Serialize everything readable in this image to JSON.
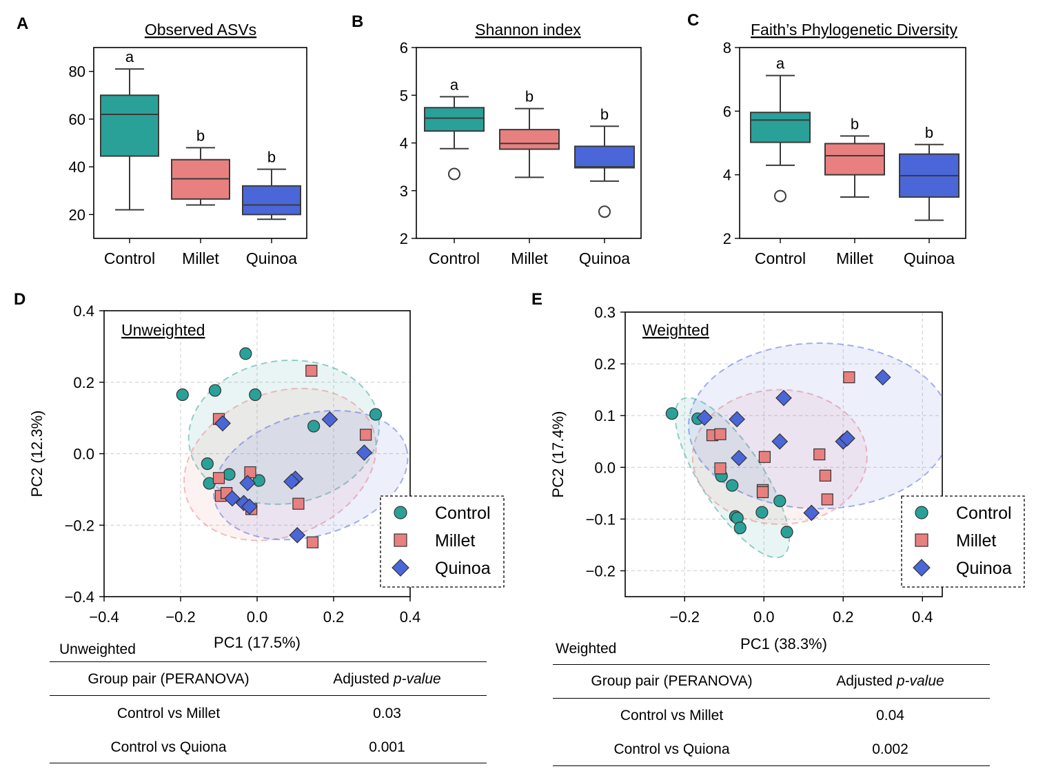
{
  "figure": {
    "colors": {
      "control": "#2aa198",
      "millet": "#e88080",
      "quinoa": "#4a66d8"
    },
    "panels": [
      "A",
      "B",
      "C",
      "D",
      "E"
    ]
  },
  "chart_data": [
    {
      "panel": "A",
      "type": "box",
      "title": "Observed ASVs",
      "categories": [
        "Control",
        "Millet",
        "Quinoa"
      ],
      "yticks": [
        20,
        40,
        60,
        80
      ],
      "ylim": [
        10,
        90
      ],
      "boxes": [
        {
          "group": "Control",
          "whislo": 22,
          "q1": 44.5,
          "med": 62,
          "q3": 70,
          "whishi": 81,
          "fliers": [],
          "letter": "a"
        },
        {
          "group": "Millet",
          "whislo": 24,
          "q1": 26.5,
          "med": 35,
          "q3": 43,
          "whishi": 48,
          "fliers": [],
          "letter": "b"
        },
        {
          "group": "Quinoa",
          "whislo": 18,
          "q1": 20,
          "med": 24,
          "q3": 32,
          "whishi": 39,
          "fliers": [],
          "letter": "b"
        }
      ]
    },
    {
      "panel": "B",
      "type": "box",
      "title": "Shannon index",
      "categories": [
        "Control",
        "Millet",
        "Quinoa"
      ],
      "yticks": [
        2,
        3,
        4,
        5,
        6
      ],
      "ylim": [
        2,
        6
      ],
      "boxes": [
        {
          "group": "Control",
          "whislo": 3.88,
          "q1": 4.25,
          "med": 4.52,
          "q3": 4.74,
          "whishi": 4.97,
          "fliers": [
            3.35
          ],
          "letter": "a"
        },
        {
          "group": "Millet",
          "whislo": 3.28,
          "q1": 3.87,
          "med": 3.99,
          "q3": 4.28,
          "whishi": 4.72,
          "fliers": [],
          "letter": "b"
        },
        {
          "group": "Quinoa",
          "whislo": 3.2,
          "q1": 3.48,
          "med": 3.5,
          "q3": 3.93,
          "whishi": 4.35,
          "fliers": [
            2.56
          ],
          "letter": "b"
        }
      ]
    },
    {
      "panel": "C",
      "type": "box",
      "title": "Faith’s Phylogenetic Diversity",
      "categories": [
        "Control",
        "Millet",
        "Quinoa"
      ],
      "yticks": [
        2,
        4,
        6,
        8
      ],
      "ylim": [
        2,
        8
      ],
      "boxes": [
        {
          "group": "Control",
          "whislo": 4.3,
          "q1": 5.02,
          "med": 5.72,
          "q3": 5.96,
          "whishi": 7.12,
          "fliers": [
            3.33
          ],
          "letter": "a"
        },
        {
          "group": "Millet",
          "whislo": 3.3,
          "q1": 4.0,
          "med": 4.6,
          "q3": 4.98,
          "whishi": 5.22,
          "fliers": [],
          "letter": "b"
        },
        {
          "group": "Quinoa",
          "whislo": 2.57,
          "q1": 3.3,
          "med": 3.97,
          "q3": 4.65,
          "whishi": 4.95,
          "fliers": [],
          "letter": "b"
        }
      ]
    },
    {
      "panel": "D",
      "type": "scatter",
      "annotation": "Unweighted",
      "xlabel": "PC1 (17.5%)",
      "ylabel": "PC2 (12.3%)",
      "xlim": [
        -0.4,
        0.4
      ],
      "ylim": [
        -0.4,
        0.4
      ],
      "xticks": [
        -0.4,
        -0.2,
        0.0,
        0.2,
        0.4
      ],
      "yticks": [
        -0.4,
        -0.2,
        0.0,
        0.2,
        0.4
      ],
      "xticklabels": [
        "−0.4",
        "−0.2",
        "0.0",
        "0.2",
        "0.4"
      ],
      "yticklabels": [
        "−0.4",
        "−0.2",
        "0.0",
        "0.2",
        "0.4"
      ],
      "grid": true,
      "legend": "lower-right",
      "series": [
        {
          "name": "Control",
          "marker": "circle",
          "points": [
            [
              -0.03,
              0.28
            ],
            [
              -0.195,
              0.165
            ],
            [
              -0.11,
              0.177
            ],
            [
              -0.005,
              0.165
            ],
            [
              0.31,
              0.11
            ],
            [
              0.148,
              0.077
            ],
            [
              -0.13,
              -0.028
            ],
            [
              -0.125,
              -0.083
            ],
            [
              -0.073,
              -0.058
            ],
            [
              0.005,
              -0.075
            ]
          ]
        },
        {
          "name": "Millet",
          "marker": "square",
          "points": [
            [
              0.142,
              0.232
            ],
            [
              -0.1,
              0.097
            ],
            [
              0.284,
              0.053
            ],
            [
              -0.1,
              -0.068
            ],
            [
              -0.018,
              -0.052
            ],
            [
              -0.095,
              -0.118
            ],
            [
              -0.08,
              -0.11
            ],
            [
              -0.015,
              -0.155
            ],
            [
              0.108,
              -0.14
            ],
            [
              0.145,
              -0.248
            ]
          ]
        },
        {
          "name": "Quinoa",
          "marker": "diamond",
          "points": [
            [
              -0.09,
              0.085
            ],
            [
              0.19,
              0.096
            ],
            [
              0.28,
              0.003
            ],
            [
              -0.025,
              -0.082
            ],
            [
              0.1,
              -0.07
            ],
            [
              0.09,
              -0.078
            ],
            [
              -0.065,
              -0.125
            ],
            [
              -0.035,
              -0.138
            ],
            [
              -0.02,
              -0.148
            ],
            [
              0.105,
              -0.228
            ]
          ]
        }
      ],
      "ellipses": [
        {
          "group": "Control",
          "cx": 0.07,
          "cy": 0.06,
          "rx": 0.25,
          "ry": 0.2,
          "angle_deg": 8
        },
        {
          "group": "Millet",
          "cx": 0.06,
          "cy": -0.03,
          "rx": 0.26,
          "ry": 0.2,
          "angle_deg": 22
        },
        {
          "group": "Quinoa",
          "cx": 0.14,
          "cy": -0.06,
          "rx": 0.26,
          "ry": 0.17,
          "angle_deg": 16
        }
      ]
    },
    {
      "panel": "E",
      "type": "scatter",
      "annotation": "Weighted",
      "xlabel": "PC1 (38.3%)",
      "ylabel": "PC2 (17.4%)",
      "xlim": [
        -0.35,
        0.45
      ],
      "ylim": [
        -0.25,
        0.3
      ],
      "xticks": [
        -0.2,
        0.0,
        0.2,
        0.4
      ],
      "yticks": [
        -0.2,
        -0.1,
        0.0,
        0.1,
        0.2,
        0.3
      ],
      "xticklabels": [
        "−0.2",
        "0.0",
        "0.2",
        "0.4"
      ],
      "yticklabels": [
        "−0.2",
        "−0.1",
        "0.0",
        "0.1",
        "0.2",
        "0.3"
      ],
      "grid": true,
      "legend": "lower-right",
      "series": [
        {
          "name": "Control",
          "marker": "circle",
          "points": [
            [
              -0.232,
              0.104
            ],
            [
              -0.167,
              0.094
            ],
            [
              -0.107,
              -0.017
            ],
            [
              -0.08,
              -0.035
            ],
            [
              -0.072,
              -0.095
            ],
            [
              -0.067,
              -0.098
            ],
            [
              -0.06,
              -0.117
            ],
            [
              -0.005,
              -0.087
            ],
            [
              0.04,
              -0.065
            ],
            [
              0.058,
              -0.125
            ]
          ]
        },
        {
          "name": "Millet",
          "marker": "square",
          "points": [
            [
              0.215,
              0.174
            ],
            [
              -0.13,
              0.062
            ],
            [
              -0.11,
              0.064
            ],
            [
              -0.11,
              -0.002
            ],
            [
              0.002,
              0.02
            ],
            [
              0.14,
              0.025
            ],
            [
              -0.003,
              -0.044
            ],
            [
              -0.003,
              -0.048
            ],
            [
              0.155,
              -0.016
            ],
            [
              0.16,
              -0.062
            ]
          ]
        },
        {
          "name": "Quinoa",
          "marker": "diamond",
          "points": [
            [
              0.3,
              0.174
            ],
            [
              0.05,
              0.134
            ],
            [
              -0.15,
              0.096
            ],
            [
              -0.068,
              0.093
            ],
            [
              0.04,
              0.05
            ],
            [
              0.2,
              0.05
            ],
            [
              0.21,
              0.056
            ],
            [
              -0.063,
              0.018
            ],
            [
              0.12,
              -0.088
            ]
          ]
        }
      ],
      "ellipses": [
        {
          "group": "Control",
          "cx": -0.08,
          "cy": -0.02,
          "rx": 0.235,
          "ry": 0.06,
          "angle_deg": -57
        },
        {
          "group": "Millet",
          "cx": 0.04,
          "cy": 0.02,
          "rx": 0.22,
          "ry": 0.13,
          "angle_deg": 0
        },
        {
          "group": "Quinoa",
          "cx": 0.14,
          "cy": 0.08,
          "rx": 0.33,
          "ry": 0.16,
          "angle_deg": 0
        }
      ]
    }
  ],
  "legend": {
    "items": [
      "Control",
      "Millet",
      "Quinoa"
    ]
  },
  "tables": {
    "unweighted": {
      "caption": "Unweighted",
      "col1": "Group pair (PERANOVA)",
      "col2_prefix": "Adjusted ",
      "col2_italic": "p-value",
      "rows": [
        {
          "pair": "Control vs Millet",
          "p": "0.03"
        },
        {
          "pair": "Control vs Quiona",
          "p": "0.001"
        }
      ]
    },
    "weighted": {
      "caption": "Weighted",
      "col1": "Group pair (PERANOVA)",
      "col2_prefix": "Adjusted ",
      "col2_italic": "p-value",
      "rows": [
        {
          "pair": "Control vs Millet",
          "p": "0.04"
        },
        {
          "pair": "Control vs Quiona",
          "p": "0.002"
        }
      ]
    }
  }
}
